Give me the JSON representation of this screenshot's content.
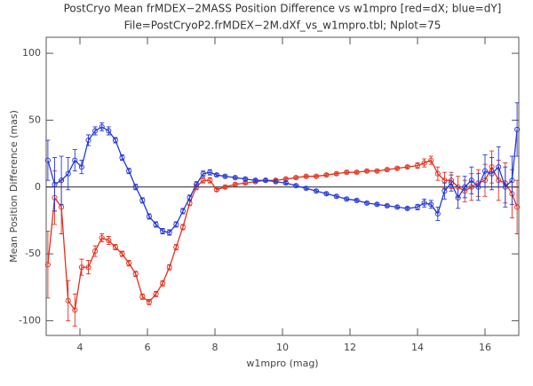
{
  "chart_data": {
    "type": "line",
    "title": "PostCryo Mean frMDEX−2MASS Position Difference vs w1mpro [red=dX; blue=dY]",
    "subtitle": "File=PostCryoP2.frMDEX−2M.dXf_vs_w1mpro.tbl; Nplot=75",
    "x_label": "w1mpro (mag)",
    "y_label": "Mean Position Difference (mas)",
    "x": [
      3.05,
      3.25,
      3.45,
      3.65,
      3.85,
      4.05,
      4.25,
      4.45,
      4.65,
      4.85,
      5.05,
      5.25,
      5.45,
      5.65,
      5.85,
      6.05,
      6.25,
      6.45,
      6.65,
      6.85,
      7.05,
      7.25,
      7.45,
      7.65,
      7.85,
      8.05,
      8.3,
      8.6,
      8.9,
      9.2,
      9.5,
      9.8,
      10.1,
      10.4,
      10.7,
      11.0,
      11.3,
      11.6,
      11.9,
      12.2,
      12.5,
      12.8,
      13.1,
      13.4,
      13.7,
      14.0,
      14.2,
      14.4,
      14.6,
      14.8,
      15.0,
      15.2,
      15.4,
      15.6,
      15.8,
      16.0,
      16.2,
      16.4,
      16.6,
      16.8,
      16.95
    ],
    "series": [
      {
        "name": "dX",
        "color": "#e2301c",
        "values": [
          -58,
          -8,
          -15,
          -85,
          -92,
          -60,
          -60,
          -48,
          -38,
          -40,
          -45,
          -50,
          -57,
          -65,
          -82,
          -86,
          -80,
          -72,
          -60,
          -45,
          -30,
          -12,
          0,
          5,
          5,
          -2,
          0,
          2,
          3,
          4,
          5,
          5,
          6,
          7,
          8,
          8,
          9,
          10,
          11,
          11,
          12,
          12,
          13,
          14,
          15,
          16,
          18,
          20,
          10,
          5,
          5,
          0,
          -3,
          0,
          3,
          5,
          15,
          5,
          3,
          -5,
          -15
        ],
        "errors": [
          25,
          20,
          20,
          15,
          12,
          6,
          5,
          4,
          3,
          3,
          2,
          2,
          2,
          2,
          2,
          2,
          2,
          2,
          2,
          2,
          2,
          2,
          2,
          2,
          2,
          1,
          1,
          1,
          1,
          1,
          1,
          1,
          1,
          1,
          1,
          1,
          1,
          1,
          1,
          1,
          1,
          1,
          1,
          1,
          1,
          2,
          3,
          3,
          5,
          6,
          6,
          8,
          8,
          10,
          10,
          12,
          12,
          15,
          15,
          18,
          20
        ]
      },
      {
        "name": "dY",
        "color": "#2438d8",
        "values": [
          20,
          2,
          5,
          10,
          20,
          15,
          35,
          42,
          45,
          42,
          35,
          22,
          12,
          0,
          -10,
          -22,
          -28,
          -33,
          -34,
          -28,
          -18,
          -8,
          2,
          10,
          11,
          9,
          8,
          7,
          6,
          5,
          5,
          4,
          3,
          1,
          -1,
          -3,
          -5,
          -7,
          -9,
          -10,
          -12,
          -13,
          -14,
          -15,
          -16,
          -15,
          -12,
          -13,
          -20,
          -3,
          3,
          -8,
          0,
          5,
          0,
          12,
          10,
          15,
          0,
          5,
          43
        ],
        "errors": [
          15,
          20,
          18,
          12,
          8,
          5,
          4,
          3,
          3,
          3,
          2,
          2,
          2,
          2,
          2,
          2,
          2,
          2,
          2,
          2,
          2,
          2,
          2,
          2,
          2,
          1,
          1,
          1,
          1,
          1,
          1,
          1,
          1,
          1,
          1,
          1,
          1,
          1,
          1,
          1,
          1,
          1,
          1,
          1,
          1,
          2,
          3,
          3,
          5,
          6,
          6,
          8,
          8,
          10,
          10,
          12,
          12,
          15,
          15,
          18,
          20
        ]
      }
    ],
    "xlim": [
      3,
      17
    ],
    "xticks": [
      4,
      6,
      8,
      10,
      12,
      14,
      16
    ],
    "ylim": [
      -111,
      112
    ],
    "yticks": [
      -100,
      -50,
      0,
      50,
      100
    ],
    "zero_line": true
  }
}
